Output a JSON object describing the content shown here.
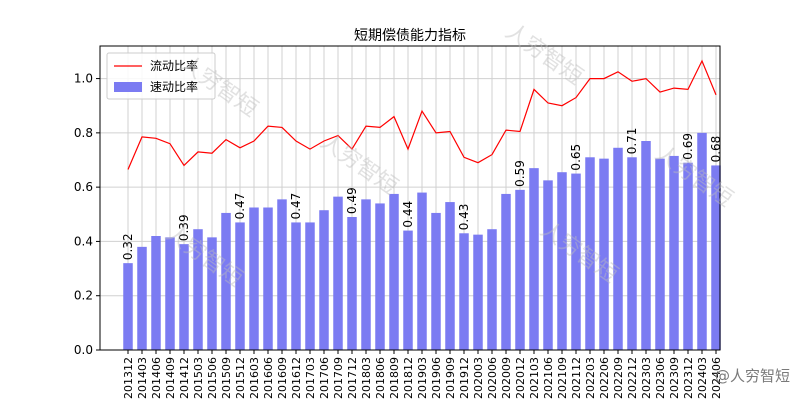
{
  "chart_data": {
    "type": "bar",
    "title": "短期偿债能力指标",
    "categories": [
      "201312",
      "201403",
      "201406",
      "201409",
      "201412",
      "201503",
      "201506",
      "201509",
      "201512",
      "201603",
      "201606",
      "201609",
      "201612",
      "201703",
      "201706",
      "201709",
      "201712",
      "201803",
      "201806",
      "201809",
      "201812",
      "201903",
      "201906",
      "201909",
      "201912",
      "202003",
      "202006",
      "202009",
      "202012",
      "202103",
      "202106",
      "202109",
      "202112",
      "202203",
      "202206",
      "202209",
      "202212",
      "202303",
      "202306",
      "202309",
      "202312",
      "202403",
      "202406"
    ],
    "series": [
      {
        "name": "流动比率",
        "render": "line",
        "color": "#ff0000",
        "values": [
          0.665,
          0.785,
          0.78,
          0.76,
          0.68,
          0.73,
          0.725,
          0.775,
          0.745,
          0.77,
          0.825,
          0.82,
          0.77,
          0.74,
          0.77,
          0.79,
          0.74,
          0.825,
          0.82,
          0.86,
          0.74,
          0.88,
          0.8,
          0.805,
          0.71,
          0.69,
          0.72,
          0.81,
          0.805,
          0.96,
          0.91,
          0.9,
          0.93,
          1.0,
          1.0,
          1.025,
          0.99,
          1.0,
          0.95,
          0.965,
          0.96,
          1.065,
          0.94
        ]
      },
      {
        "name": "速动比率",
        "render": "bar",
        "color": "#7b7bf2",
        "values": [
          0.32,
          0.38,
          0.42,
          0.415,
          0.39,
          0.445,
          0.415,
          0.505,
          0.47,
          0.525,
          0.525,
          0.555,
          0.47,
          0.47,
          0.515,
          0.565,
          0.49,
          0.555,
          0.54,
          0.575,
          0.44,
          0.58,
          0.505,
          0.545,
          0.43,
          0.425,
          0.445,
          0.575,
          0.59,
          0.67,
          0.625,
          0.655,
          0.65,
          0.71,
          0.705,
          0.745,
          0.71,
          0.77,
          0.705,
          0.715,
          0.69,
          0.8,
          0.68
        ]
      }
    ],
    "bar_labels": [
      {
        "index": 0,
        "text": "0.32"
      },
      {
        "index": 4,
        "text": "0.39"
      },
      {
        "index": 8,
        "text": "0.47"
      },
      {
        "index": 12,
        "text": "0.47"
      },
      {
        "index": 16,
        "text": "0.49"
      },
      {
        "index": 20,
        "text": "0.44"
      },
      {
        "index": 24,
        "text": "0.43"
      },
      {
        "index": 28,
        "text": "0.59"
      },
      {
        "index": 32,
        "text": "0.65"
      },
      {
        "index": 36,
        "text": "0.71"
      },
      {
        "index": 40,
        "text": "0.69"
      },
      {
        "index": 42,
        "text": "0.68"
      }
    ],
    "ylim": [
      0,
      1.12
    ],
    "yticks": [
      "0.0",
      "0.2",
      "0.4",
      "0.6",
      "0.8",
      "1.0"
    ],
    "ytick_values": [
      0,
      0.2,
      0.4,
      0.6,
      0.8,
      1.0
    ],
    "grid": true,
    "legend_position": "top-left"
  },
  "watermarks": [
    "人穷智短",
    "人穷智短",
    "人穷智短",
    "人穷智短",
    "人穷智短",
    "人穷智短"
  ],
  "corner_watermark": "@人穷智短"
}
